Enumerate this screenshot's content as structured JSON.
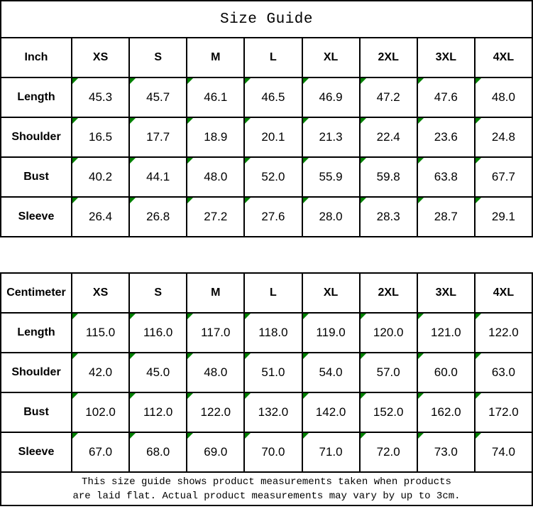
{
  "page": {
    "title": "Size Guide",
    "footer_lines": [
      "This size guide shows product measurements taken when products",
      "are laid flat. Actual product measurements may vary by up to 3cm."
    ],
    "colors": {
      "border": "#000000",
      "text": "#000000",
      "background": "#ffffff",
      "cell_marker_green": "#008000"
    }
  },
  "tables": [
    {
      "unit_label": "Inch",
      "sizes": [
        "XS",
        "S",
        "M",
        "L",
        "XL",
        "2XL",
        "3XL",
        "4XL"
      ],
      "rows": [
        {
          "label": "Length",
          "values": [
            "45.3",
            "45.7",
            "46.1",
            "46.5",
            "46.9",
            "47.2",
            "47.6",
            "48.0"
          ]
        },
        {
          "label": "Shoulder",
          "values": [
            "16.5",
            "17.7",
            "18.9",
            "20.1",
            "21.3",
            "22.4",
            "23.6",
            "24.8"
          ]
        },
        {
          "label": "Bust",
          "values": [
            "40.2",
            "44.1",
            "48.0",
            "52.0",
            "55.9",
            "59.8",
            "63.8",
            "67.7"
          ]
        },
        {
          "label": "Sleeve",
          "values": [
            "26.4",
            "26.8",
            "27.2",
            "27.6",
            "28.0",
            "28.3",
            "28.7",
            "29.1"
          ]
        }
      ]
    },
    {
      "unit_label": "Centimeter",
      "sizes": [
        "XS",
        "S",
        "M",
        "L",
        "XL",
        "2XL",
        "3XL",
        "4XL"
      ],
      "rows": [
        {
          "label": "Length",
          "values": [
            "115.0",
            "116.0",
            "117.0",
            "118.0",
            "119.0",
            "120.0",
            "121.0",
            "122.0"
          ]
        },
        {
          "label": "Shoulder",
          "values": [
            "42.0",
            "45.0",
            "48.0",
            "51.0",
            "54.0",
            "57.0",
            "60.0",
            "63.0"
          ]
        },
        {
          "label": "Bust",
          "values": [
            "102.0",
            "112.0",
            "122.0",
            "132.0",
            "142.0",
            "152.0",
            "162.0",
            "172.0"
          ]
        },
        {
          "label": "Sleeve",
          "values": [
            "67.0",
            "68.0",
            "69.0",
            "70.0",
            "71.0",
            "72.0",
            "73.0",
            "74.0"
          ]
        }
      ]
    }
  ]
}
